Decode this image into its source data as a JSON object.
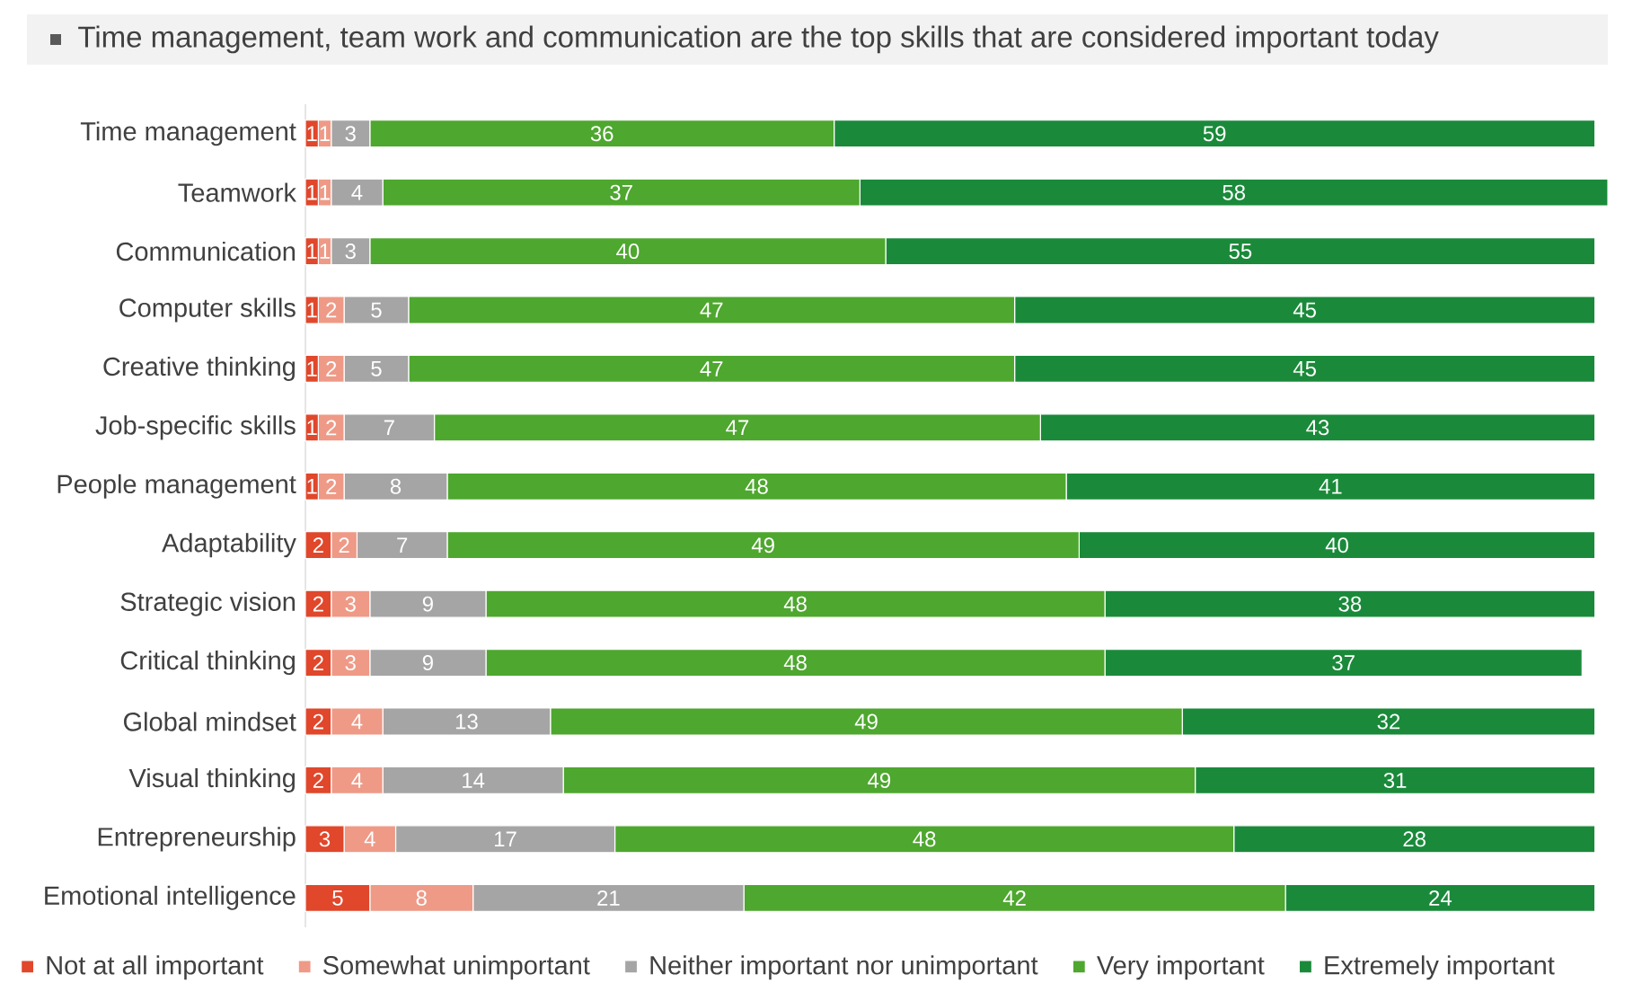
{
  "chart_data": {
    "type": "bar",
    "orientation": "horizontal",
    "stacked": true,
    "title": "Time management, team work and communication are the top skills that are considered important today",
    "categories": [
      "Time management",
      "Teamwork",
      "Communication",
      "Computer skills",
      "Creative thinking",
      "Job-specific skills",
      "People management",
      "Adaptability",
      "Strategic vision",
      "Critical thinking",
      "Global mindset",
      "Visual thinking",
      "Entrepreneurship",
      "Emotional intelligence"
    ],
    "series": [
      {
        "name": "Not at all important",
        "color": "#e0472b",
        "values": [
          1,
          1,
          1,
          1,
          1,
          1,
          1,
          2,
          2,
          2,
          2,
          2,
          3,
          5
        ]
      },
      {
        "name": "Somewhat  unimportant",
        "color": "#ee9a87",
        "values": [
          1,
          1,
          1,
          2,
          2,
          2,
          2,
          2,
          3,
          3,
          4,
          4,
          4,
          8
        ]
      },
      {
        "name": "Neither important nor unimportant",
        "color": "#a5a5a5",
        "values": [
          3,
          4,
          3,
          5,
          5,
          7,
          8,
          7,
          9,
          9,
          13,
          14,
          17,
          21
        ]
      },
      {
        "name": "Very important",
        "color": "#4ea72e",
        "values": [
          36,
          37,
          40,
          47,
          47,
          47,
          48,
          49,
          48,
          48,
          49,
          49,
          48,
          42
        ]
      },
      {
        "name": "Extremely important",
        "color": "#1a8a3a",
        "values": [
          59,
          58,
          55,
          45,
          45,
          43,
          41,
          40,
          38,
          37,
          32,
          31,
          28,
          24
        ]
      }
    ],
    "tick_labels": "y",
    "data_labels": true,
    "legend": "bottom"
  }
}
